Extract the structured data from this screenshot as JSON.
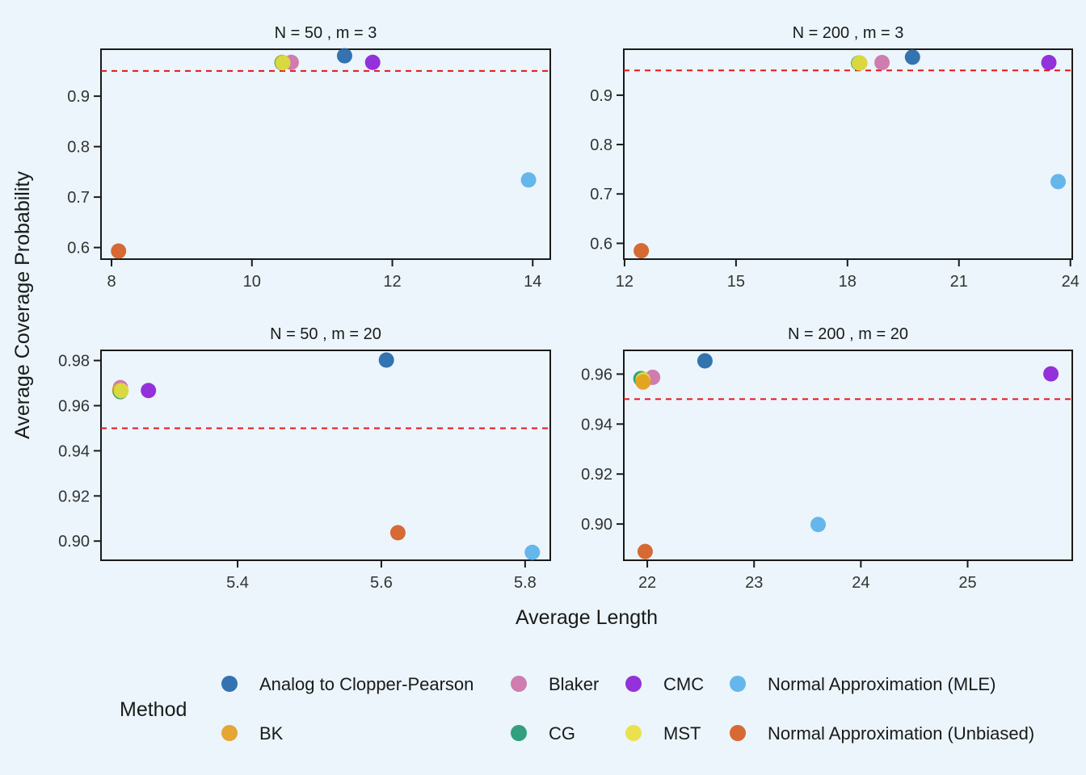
{
  "axis": {
    "xlabel": "Average Length",
    "ylabel": "Average Coverage Probability"
  },
  "legend": {
    "title": "Method",
    "placement": "bottom"
  },
  "methods": [
    {
      "key": "acp",
      "name": "Analog to Clopper-Pearson",
      "color": "#1F65A6"
    },
    {
      "key": "blaker",
      "name": "Blaker",
      "color": "#CC6FA5"
    },
    {
      "key": "cmc",
      "name": "CMC",
      "color": "#8A1CD6"
    },
    {
      "key": "nmle",
      "name": "Normal Approximation (MLE)",
      "color": "#56AFE8"
    },
    {
      "key": "bk",
      "name": "BK",
      "color": "#E39D1E"
    },
    {
      "key": "cg",
      "name": "CG",
      "color": "#1E9670"
    },
    {
      "key": "mst",
      "name": "MST",
      "color": "#EBDF3C"
    },
    {
      "key": "nunb",
      "name": "Normal Approximation (Unbiased)",
      "color": "#D45A1E"
    }
  ],
  "chart_data": [
    {
      "type": "scatter",
      "title": "N = 50 , m = 3",
      "reference_line": 0.95,
      "xlim": [
        7.85,
        14.25
      ],
      "ylim": [
        0.577,
        0.993
      ],
      "xticks": [
        8,
        10,
        12,
        14
      ],
      "yticks": [
        0.6,
        0.7,
        0.8,
        0.9
      ],
      "xtick_labels": [
        "8",
        "10",
        "12",
        "14"
      ],
      "ytick_labels": [
        "0.6",
        "0.7",
        "0.8",
        "0.9"
      ],
      "points": [
        {
          "method": "acp",
          "x": 11.32,
          "y": 0.98
        },
        {
          "method": "blaker",
          "x": 10.56,
          "y": 0.967
        },
        {
          "method": "cmc",
          "x": 11.72,
          "y": 0.967
        },
        {
          "method": "nmle",
          "x": 13.94,
          "y": 0.734
        },
        {
          "method": "bk",
          "x": 10.43,
          "y": 0.967
        },
        {
          "method": "cg",
          "x": 10.43,
          "y": 0.966
        },
        {
          "method": "mst",
          "x": 10.44,
          "y": 0.966
        },
        {
          "method": "nunb",
          "x": 8.1,
          "y": 0.593
        }
      ]
    },
    {
      "type": "scatter",
      "title": "N = 200 , m = 3",
      "reference_line": 0.95,
      "xlim": [
        11.98,
        24.05
      ],
      "ylim": [
        0.568,
        0.993
      ],
      "xticks": [
        12,
        15,
        18,
        21,
        24
      ],
      "yticks": [
        0.6,
        0.7,
        0.8,
        0.9
      ],
      "xtick_labels": [
        "12",
        "15",
        "18",
        "21",
        "24"
      ],
      "ytick_labels": [
        "0.6",
        "0.7",
        "0.8",
        "0.9"
      ],
      "points": [
        {
          "method": "acp",
          "x": 19.75,
          "y": 0.977
        },
        {
          "method": "blaker",
          "x": 18.93,
          "y": 0.966
        },
        {
          "method": "cmc",
          "x": 23.42,
          "y": 0.966
        },
        {
          "method": "nmle",
          "x": 23.67,
          "y": 0.725
        },
        {
          "method": "bk",
          "x": 18.33,
          "y": 0.965
        },
        {
          "method": "cg",
          "x": 18.3,
          "y": 0.965
        },
        {
          "method": "mst",
          "x": 18.32,
          "y": 0.965
        },
        {
          "method": "nunb",
          "x": 12.45,
          "y": 0.585
        }
      ]
    },
    {
      "type": "scatter",
      "title": "N = 50 , m = 20",
      "reference_line": 0.95,
      "xlim": [
        5.21,
        5.835
      ],
      "ylim": [
        0.8915,
        0.9845
      ],
      "xticks": [
        5.4,
        5.6,
        5.8
      ],
      "yticks": [
        0.9,
        0.92,
        0.94,
        0.96,
        0.98
      ],
      "xtick_labels": [
        "5.4",
        "5.6",
        "5.8"
      ],
      "ytick_labels": [
        "0.90",
        "0.92",
        "0.94",
        "0.96",
        "0.98"
      ],
      "points": [
        {
          "method": "acp",
          "x": 5.607,
          "y": 0.9802
        },
        {
          "method": "blaker",
          "x": 5.237,
          "y": 0.968
        },
        {
          "method": "cmc",
          "x": 5.276,
          "y": 0.9667
        },
        {
          "method": "nmle",
          "x": 5.81,
          "y": 0.895
        },
        {
          "method": "bk",
          "x": 5.236,
          "y": 0.9668
        },
        {
          "method": "cg",
          "x": 5.237,
          "y": 0.9662
        },
        {
          "method": "mst",
          "x": 5.238,
          "y": 0.9666
        },
        {
          "method": "nunb",
          "x": 5.623,
          "y": 0.9037
        }
      ]
    },
    {
      "type": "scatter",
      "title": "N = 200 , m = 20",
      "reference_line": 0.95,
      "xlim": [
        21.78,
        25.98
      ],
      "ylim": [
        0.8855,
        0.9695
      ],
      "xticks": [
        22,
        23,
        24,
        25
      ],
      "yticks": [
        0.9,
        0.92,
        0.94,
        0.96
      ],
      "xtick_labels": [
        "22",
        "23",
        "24",
        "25"
      ],
      "ytick_labels": [
        "0.90",
        "0.92",
        "0.94",
        "0.96"
      ],
      "points": [
        {
          "method": "acp",
          "x": 22.54,
          "y": 0.9653
        },
        {
          "method": "blaker",
          "x": 22.05,
          "y": 0.9587
        },
        {
          "method": "cmc",
          "x": 25.78,
          "y": 0.9601
        },
        {
          "method": "nmle",
          "x": 23.6,
          "y": 0.8998
        },
        {
          "method": "cg",
          "x": 21.94,
          "y": 0.9582
        },
        {
          "method": "mst",
          "x": 21.96,
          "y": 0.9577
        },
        {
          "method": "bk",
          "x": 21.96,
          "y": 0.9568
        },
        {
          "method": "nunb",
          "x": 21.98,
          "y": 0.889
        }
      ]
    }
  ]
}
